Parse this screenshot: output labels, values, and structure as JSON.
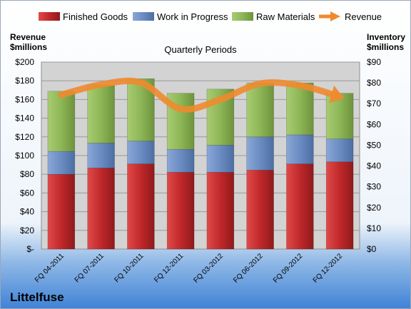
{
  "company": "Littelfuse",
  "colors": {
    "finished_goods": "#c0282a",
    "work_in_progress": "#6a8cc2",
    "raw_materials": "#8db656",
    "revenue": "#ef8a2d",
    "plot_bg": "#d3d3d3"
  },
  "chart_data": {
    "type": "bar",
    "stacked": true,
    "title": "Quarterly Periods",
    "left_axis_label": [
      "Revenue",
      "$millions"
    ],
    "right_axis_label": [
      "Inventory",
      "$millions"
    ],
    "categories": [
      "FQ 04-2011",
      "FQ 07-2011",
      "FQ 10-2011",
      "FQ 12-2011",
      "FQ 03-2012",
      "FQ 06-2012",
      "FQ 09-2012",
      "FQ 12-2012"
    ],
    "series": [
      {
        "name": "Finished Goods",
        "axis": "right",
        "values": [
          36,
          39,
          41,
          37,
          37,
          38,
          41,
          42
        ]
      },
      {
        "name": "Work in Progress",
        "axis": "right",
        "values": [
          11,
          12,
          11,
          11,
          13,
          16,
          14,
          11
        ]
      },
      {
        "name": "Raw Materials",
        "axis": "right",
        "values": [
          29,
          28,
          30,
          27,
          27,
          26,
          25,
          22
        ]
      },
      {
        "name": "Revenue",
        "axis": "left",
        "type": "line",
        "values": [
          165,
          176,
          178,
          150,
          160,
          177,
          175,
          163
        ]
      }
    ],
    "left_axis": {
      "min": 0,
      "max": 200,
      "step": 20,
      "ticks": [
        "$-",
        "$20",
        "$40",
        "$60",
        "$80",
        "$100",
        "$120",
        "$140",
        "$160",
        "$180",
        "$200"
      ]
    },
    "right_axis": {
      "min": 0,
      "max": 90,
      "step": 10,
      "ticks": [
        "$0",
        "$10",
        "$20",
        "$30",
        "$40",
        "$50",
        "$60",
        "$70",
        "$80",
        "$90"
      ]
    },
    "legend_position": "top",
    "grid": true
  }
}
